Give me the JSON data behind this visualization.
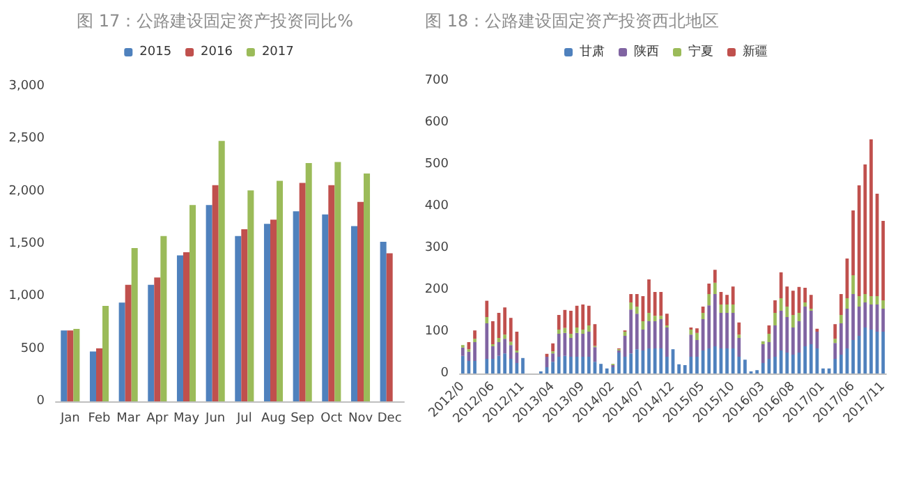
{
  "chart_data": [
    {
      "type": "bar",
      "title": "图 17：公路建设固定资产投资同比%",
      "categories": [
        "Jan",
        "Feb",
        "Mar",
        "Apr",
        "May",
        "Jun",
        "Jul",
        "Aug",
        "Sep",
        "Oct",
        "Nov",
        "Dec"
      ],
      "series": [
        {
          "name": "2015",
          "color": "#4f81bd",
          "values": [
            675,
            475,
            940,
            1110,
            1390,
            1870,
            1575,
            1690,
            1810,
            1780,
            1670,
            1520
          ]
        },
        {
          "name": "2016",
          "color": "#c0504d",
          "values": [
            675,
            505,
            1110,
            1180,
            1420,
            2060,
            1640,
            1730,
            2080,
            2060,
            1900,
            1410
          ]
        },
        {
          "name": "2017",
          "color": "#9bbb59",
          "values": [
            690,
            910,
            1460,
            1575,
            1870,
            2480,
            2010,
            2100,
            2270,
            2280,
            2170,
            null
          ]
        }
      ],
      "ylim": [
        0,
        3000
      ],
      "yticks": [
        0,
        500,
        {
          "value": 1000,
          "label": "1,000"
        },
        {
          "value": 1500,
          "label": "1,500"
        },
        {
          "value": 2000,
          "label": "2,000"
        },
        {
          "value": 2500,
          "label": "2,500"
        },
        {
          "value": 3000,
          "label": "3,000"
        }
      ],
      "grid": false,
      "legend": "top"
    },
    {
      "type": "bar",
      "title": "图 18：公路建设固定资产投资西北地区",
      "stacked": true,
      "categories": [
        "2012/0",
        null,
        null,
        null,
        null,
        "2012/06",
        null,
        null,
        null,
        null,
        "2012/11",
        null,
        null,
        null,
        null,
        "2013/04",
        null,
        null,
        null,
        null,
        "2013/09",
        null,
        null,
        null,
        null,
        "2014/02",
        null,
        null,
        null,
        null,
        "2014/07",
        null,
        null,
        null,
        null,
        "2014/12",
        null,
        null,
        null,
        null,
        "2015/05",
        null,
        null,
        null,
        null,
        "2015/10",
        null,
        null,
        null,
        null,
        "2016/03",
        null,
        null,
        null,
        null,
        "2016/08",
        null,
        null,
        null,
        null,
        "2017/01",
        null,
        null,
        null,
        null,
        "2017/06",
        null,
        null,
        null,
        null,
        "2017/11"
      ],
      "series": [
        {
          "name": "甘肃",
          "color": "#4f81bd",
          "values": [
            42,
            30,
            30,
            null,
            35,
            35,
            42,
            48,
            35,
            25,
            37,
            null,
            null,
            5,
            15,
            28,
            40,
            42,
            40,
            40,
            40,
            40,
            28,
            23,
            12,
            15,
            50,
            40,
            48,
            58,
            55,
            60,
            60,
            60,
            40,
            58,
            22,
            20,
            40,
            40,
            55,
            60,
            65,
            60,
            60,
            60,
            40,
            33,
            5,
            8,
            25,
            35,
            40,
            55,
            50,
            45,
            50,
            65,
            70,
            60,
            12,
            12,
            35,
            45,
            60,
            80,
            90,
            110,
            105,
            100,
            100
          ]
        },
        {
          "name": "陕西",
          "color": "#8064a2",
          "values": [
            20,
            22,
            45,
            null,
            85,
            30,
            33,
            35,
            33,
            25,
            0,
            null,
            null,
            0,
            25,
            20,
            55,
            55,
            45,
            57,
            55,
            60,
            35,
            0,
            0,
            5,
            5,
            50,
            105,
            85,
            50,
            65,
            65,
            70,
            70,
            0,
            0,
            0,
            53,
            40,
            75,
            103,
            125,
            85,
            85,
            85,
            45,
            0,
            0,
            0,
            45,
            40,
            75,
            95,
            85,
            65,
            75,
            95,
            80,
            40,
            0,
            0,
            38,
            75,
            95,
            110,
            70,
            60,
            60,
            65,
            55
          ]
        },
        {
          "name": "宁夏",
          "color": "#9bbb59",
          "values": [
            6,
            6,
            8,
            null,
            15,
            5,
            10,
            10,
            8,
            5,
            0,
            null,
            null,
            0,
            0,
            5,
            10,
            12,
            10,
            13,
            10,
            15,
            3,
            0,
            0,
            3,
            3,
            10,
            17,
            17,
            20,
            20,
            13,
            8,
            5,
            0,
            0,
            0,
            12,
            17,
            15,
            27,
            27,
            20,
            20,
            20,
            8,
            0,
            0,
            0,
            7,
            20,
            30,
            30,
            25,
            30,
            20,
            10,
            5,
            0,
            0,
            0,
            10,
            20,
            25,
            45,
            25,
            20,
            20,
            20,
            20
          ]
        },
        {
          "name": "新疆",
          "color": "#c0504d",
          "values": [
            0,
            17,
            20,
            null,
            39,
            55,
            60,
            65,
            57,
            45,
            0,
            null,
            null,
            0,
            7,
            19,
            35,
            43,
            55,
            52,
            60,
            47,
            52,
            0,
            0,
            0,
            2,
            3,
            20,
            30,
            60,
            80,
            57,
            57,
            28,
            0,
            0,
            0,
            5,
            11,
            15,
            25,
            31,
            30,
            23,
            43,
            29,
            0,
            0,
            0,
            0,
            20,
            30,
            62,
            48,
            58,
            62,
            35,
            33,
            7,
            0,
            0,
            35,
            50,
            95,
            155,
            265,
            310,
            375,
            245,
            190
          ]
        }
      ],
      "ylim": [
        0,
        700
      ],
      "yticks": [
        0,
        100,
        200,
        300,
        400,
        500,
        600,
        700
      ],
      "grid": false,
      "legend": "top"
    }
  ]
}
